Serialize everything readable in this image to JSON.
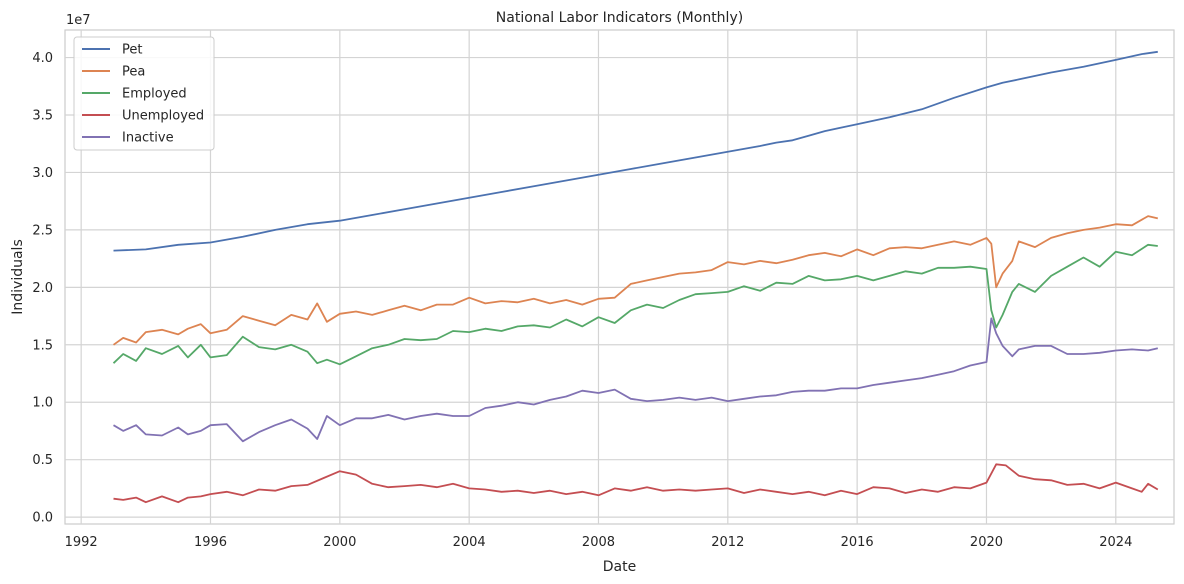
{
  "chart_data": {
    "type": "line",
    "title": "National Labor Indicators (Monthly)",
    "xlabel": "Date",
    "ylabel": "Individuals",
    "y_multiplier_label": "1e7",
    "xlim": [
      1991.5,
      2025.8
    ],
    "ylim": [
      -600000,
      42400000
    ],
    "x_ticks": [
      {
        "value": 1992,
        "label": "1992"
      },
      {
        "value": 1996,
        "label": "1996"
      },
      {
        "value": 2000,
        "label": "2000"
      },
      {
        "value": 2004,
        "label": "2004"
      },
      {
        "value": 2008,
        "label": "2008"
      },
      {
        "value": 2012,
        "label": "2012"
      },
      {
        "value": 2016,
        "label": "2016"
      },
      {
        "value": 2020,
        "label": "2020"
      },
      {
        "value": 2024,
        "label": "2024"
      }
    ],
    "y_ticks": [
      {
        "value": 0,
        "label": "0.0"
      },
      {
        "value": 5000000,
        "label": "0.5"
      },
      {
        "value": 10000000,
        "label": "1.0"
      },
      {
        "value": 15000000,
        "label": "1.5"
      },
      {
        "value": 20000000,
        "label": "2.0"
      },
      {
        "value": 25000000,
        "label": "2.5"
      },
      {
        "value": 30000000,
        "label": "3.0"
      },
      {
        "value": 35000000,
        "label": "3.5"
      },
      {
        "value": 40000000,
        "label": "4.0"
      }
    ],
    "grid": true,
    "legend_position": "top-left",
    "series": [
      {
        "name": "Pet",
        "color": "#4c72b0",
        "x": [
          1993.0,
          1994.0,
          1995.0,
          1996.0,
          1997.0,
          1998.0,
          1999.0,
          2000.0,
          2001.0,
          2002.0,
          2003.0,
          2004.0,
          2005.0,
          2006.0,
          2007.0,
          2008.0,
          2009.0,
          2010.0,
          2011.0,
          2012.0,
          2013.0,
          2013.5,
          2014.0,
          2014.5,
          2015.0,
          2016.0,
          2017.0,
          2018.0,
          2019.0,
          2020.0,
          2020.5,
          2021.0,
          2022.0,
          2023.0,
          2024.0,
          2024.8,
          2025.3
        ],
        "y": [
          23200000,
          23300000,
          23700000,
          23900000,
          24400000,
          25000000,
          25500000,
          25800000,
          26300000,
          26800000,
          27300000,
          27800000,
          28300000,
          28800000,
          29300000,
          29800000,
          30300000,
          30800000,
          31300000,
          31800000,
          32300000,
          32600000,
          32800000,
          33200000,
          33600000,
          34200000,
          34800000,
          35500000,
          36500000,
          37400000,
          37800000,
          38100000,
          38700000,
          39200000,
          39800000,
          40300000,
          40500000
        ]
      },
      {
        "name": "Pea",
        "color": "#dd8452",
        "x": [
          1993.0,
          1993.3,
          1993.7,
          1994.0,
          1994.5,
          1995.0,
          1995.3,
          1995.7,
          1996.0,
          1996.5,
          1997.0,
          1997.5,
          1998.0,
          1998.5,
          1999.0,
          1999.3,
          1999.6,
          2000.0,
          2000.5,
          2001.0,
          2001.5,
          2002.0,
          2002.5,
          2003.0,
          2003.5,
          2004.0,
          2004.5,
          2005.0,
          2005.5,
          2006.0,
          2006.5,
          2007.0,
          2007.5,
          2008.0,
          2008.5,
          2009.0,
          2009.5,
          2010.0,
          2010.5,
          2011.0,
          2011.5,
          2012.0,
          2012.5,
          2013.0,
          2013.5,
          2014.0,
          2014.5,
          2015.0,
          2015.5,
          2016.0,
          2016.5,
          2017.0,
          2017.5,
          2018.0,
          2018.5,
          2019.0,
          2019.5,
          2020.0,
          2020.15,
          2020.3,
          2020.5,
          2020.8,
          2021.0,
          2021.5,
          2022.0,
          2022.5,
          2023.0,
          2023.5,
          2024.0,
          2024.5,
          2025.0,
          2025.3
        ],
        "y": [
          15000000,
          15600000,
          15200000,
          16100000,
          16300000,
          15900000,
          16400000,
          16800000,
          16000000,
          16300000,
          17500000,
          17100000,
          16700000,
          17600000,
          17200000,
          18600000,
          17000000,
          17700000,
          17900000,
          17600000,
          18000000,
          18400000,
          18000000,
          18500000,
          18500000,
          19100000,
          18600000,
          18800000,
          18700000,
          19000000,
          18600000,
          18900000,
          18500000,
          19000000,
          19100000,
          20300000,
          20600000,
          20900000,
          21200000,
          21300000,
          21500000,
          22200000,
          22000000,
          22300000,
          22100000,
          22400000,
          22800000,
          23000000,
          22700000,
          23300000,
          22800000,
          23400000,
          23500000,
          23400000,
          23700000,
          24000000,
          23700000,
          24300000,
          23800000,
          20000000,
          21200000,
          22300000,
          24000000,
          23500000,
          24300000,
          24700000,
          25000000,
          25200000,
          25500000,
          25400000,
          26200000,
          26000000
        ]
      },
      {
        "name": "Employed",
        "color": "#55a868",
        "x": [
          1993.0,
          1993.3,
          1993.7,
          1994.0,
          1994.5,
          1995.0,
          1995.3,
          1995.7,
          1996.0,
          1996.5,
          1997.0,
          1997.5,
          1998.0,
          1998.5,
          1999.0,
          1999.3,
          1999.6,
          2000.0,
          2000.5,
          2001.0,
          2001.5,
          2002.0,
          2002.5,
          2003.0,
          2003.5,
          2004.0,
          2004.5,
          2005.0,
          2005.5,
          2006.0,
          2006.5,
          2007.0,
          2007.5,
          2008.0,
          2008.5,
          2009.0,
          2009.5,
          2010.0,
          2010.5,
          2011.0,
          2011.5,
          2012.0,
          2012.5,
          2013.0,
          2013.5,
          2014.0,
          2014.5,
          2015.0,
          2015.5,
          2016.0,
          2016.5,
          2017.0,
          2017.5,
          2018.0,
          2018.5,
          2019.0,
          2019.5,
          2020.0,
          2020.15,
          2020.3,
          2020.5,
          2020.8,
          2021.0,
          2021.5,
          2022.0,
          2022.5,
          2023.0,
          2023.5,
          2024.0,
          2024.5,
          2025.0,
          2025.3
        ],
        "y": [
          13400000,
          14200000,
          13600000,
          14700000,
          14200000,
          14900000,
          13900000,
          15000000,
          13900000,
          14100000,
          15700000,
          14800000,
          14600000,
          15000000,
          14400000,
          13400000,
          13700000,
          13300000,
          14000000,
          14700000,
          15000000,
          15500000,
          15400000,
          15500000,
          16200000,
          16100000,
          16400000,
          16200000,
          16600000,
          16700000,
          16500000,
          17200000,
          16600000,
          17400000,
          16900000,
          18000000,
          18500000,
          18200000,
          18900000,
          19400000,
          19500000,
          19600000,
          20100000,
          19700000,
          20400000,
          20300000,
          21000000,
          20600000,
          20700000,
          21000000,
          20600000,
          21000000,
          21400000,
          21200000,
          21700000,
          21700000,
          21800000,
          21600000,
          18000000,
          16500000,
          17600000,
          19600000,
          20300000,
          19600000,
          21000000,
          21800000,
          22600000,
          21800000,
          23100000,
          22800000,
          23700000,
          23600000
        ]
      },
      {
        "name": "Unemployed",
        "color": "#c44e52",
        "x": [
          1993.0,
          1993.3,
          1993.7,
          1994.0,
          1994.5,
          1995.0,
          1995.3,
          1995.7,
          1996.0,
          1996.5,
          1997.0,
          1997.5,
          1998.0,
          1998.5,
          1999.0,
          1999.5,
          2000.0,
          2000.5,
          2001.0,
          2001.5,
          2002.0,
          2002.5,
          2003.0,
          2003.5,
          2004.0,
          2004.5,
          2005.0,
          2005.5,
          2006.0,
          2006.5,
          2007.0,
          2007.5,
          2008.0,
          2008.5,
          2009.0,
          2009.5,
          2010.0,
          2010.5,
          2011.0,
          2011.5,
          2012.0,
          2012.5,
          2013.0,
          2013.5,
          2014.0,
          2014.5,
          2015.0,
          2015.5,
          2016.0,
          2016.5,
          2017.0,
          2017.5,
          2018.0,
          2018.5,
          2019.0,
          2019.5,
          2020.0,
          2020.3,
          2020.6,
          2021.0,
          2021.5,
          2022.0,
          2022.5,
          2023.0,
          2023.5,
          2024.0,
          2024.5,
          2024.8,
          2025.0,
          2025.3
        ],
        "y": [
          1600000,
          1500000,
          1700000,
          1300000,
          1800000,
          1300000,
          1700000,
          1800000,
          2000000,
          2200000,
          1900000,
          2400000,
          2300000,
          2700000,
          2800000,
          3400000,
          4000000,
          3700000,
          2900000,
          2600000,
          2700000,
          2800000,
          2600000,
          2900000,
          2500000,
          2400000,
          2200000,
          2300000,
          2100000,
          2300000,
          2000000,
          2200000,
          1900000,
          2500000,
          2300000,
          2600000,
          2300000,
          2400000,
          2300000,
          2400000,
          2500000,
          2100000,
          2400000,
          2200000,
          2000000,
          2200000,
          1900000,
          2300000,
          2000000,
          2600000,
          2500000,
          2100000,
          2400000,
          2200000,
          2600000,
          2500000,
          3000000,
          4600000,
          4500000,
          3600000,
          3300000,
          3200000,
          2800000,
          2900000,
          2500000,
          3000000,
          2500000,
          2200000,
          2900000,
          2400000
        ]
      },
      {
        "name": "Inactive",
        "color": "#8172b3",
        "x": [
          1993.0,
          1993.3,
          1993.7,
          1994.0,
          1994.5,
          1995.0,
          1995.3,
          1995.7,
          1996.0,
          1996.5,
          1997.0,
          1997.5,
          1998.0,
          1998.5,
          1999.0,
          1999.3,
          1999.6,
          2000.0,
          2000.5,
          2001.0,
          2001.5,
          2002.0,
          2002.5,
          2003.0,
          2003.5,
          2004.0,
          2004.5,
          2005.0,
          2005.5,
          2006.0,
          2006.5,
          2007.0,
          2007.5,
          2008.0,
          2008.5,
          2009.0,
          2009.5,
          2010.0,
          2010.5,
          2011.0,
          2011.5,
          2012.0,
          2012.5,
          2013.0,
          2013.5,
          2014.0,
          2014.5,
          2015.0,
          2015.5,
          2016.0,
          2016.5,
          2017.0,
          2017.5,
          2018.0,
          2018.5,
          2019.0,
          2019.5,
          2020.0,
          2020.15,
          2020.3,
          2020.5,
          2020.8,
          2021.0,
          2021.5,
          2022.0,
          2022.5,
          2023.0,
          2023.5,
          2024.0,
          2024.5,
          2025.0,
          2025.3
        ],
        "y": [
          8000000,
          7500000,
          8000000,
          7200000,
          7100000,
          7800000,
          7200000,
          7500000,
          8000000,
          8100000,
          6600000,
          7400000,
          8000000,
          8500000,
          7700000,
          6800000,
          8800000,
          8000000,
          8600000,
          8600000,
          8900000,
          8500000,
          8800000,
          9000000,
          8800000,
          8800000,
          9500000,
          9700000,
          10000000,
          9800000,
          10200000,
          10500000,
          11000000,
          10800000,
          11100000,
          10300000,
          10100000,
          10200000,
          10400000,
          10200000,
          10400000,
          10100000,
          10300000,
          10500000,
          10600000,
          10900000,
          11000000,
          11000000,
          11200000,
          11200000,
          11500000,
          11700000,
          11900000,
          12100000,
          12400000,
          12700000,
          13200000,
          13500000,
          17300000,
          16000000,
          14900000,
          14000000,
          14600000,
          14900000,
          14900000,
          14200000,
          14200000,
          14300000,
          14500000,
          14600000,
          14500000,
          14700000
        ]
      }
    ]
  }
}
